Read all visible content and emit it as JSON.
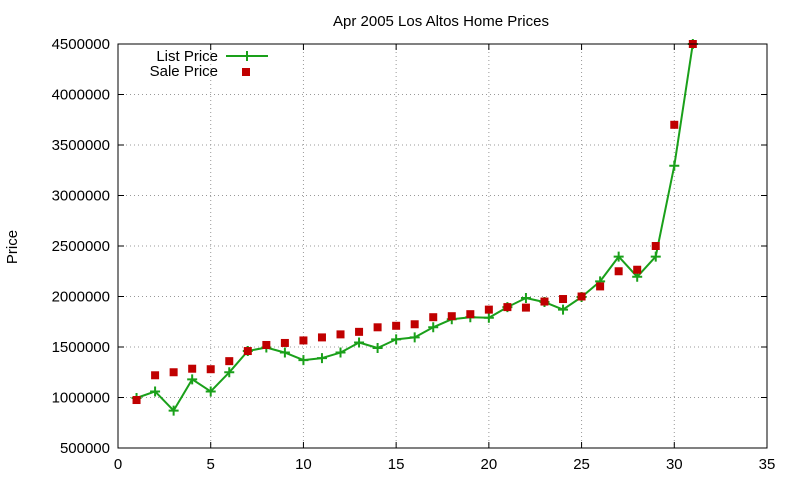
{
  "chart_data": {
    "type": "line",
    "title": "Apr 2005 Los Altos Home Prices",
    "xlabel": "",
    "ylabel": "Price",
    "xlim": [
      0,
      35
    ],
    "ylim": [
      500000,
      4500000
    ],
    "x_ticks": [
      0,
      5,
      10,
      15,
      20,
      25,
      30,
      35
    ],
    "y_ticks": [
      500000,
      1000000,
      1500000,
      2000000,
      2500000,
      3000000,
      3500000,
      4000000,
      4500000
    ],
    "grid": true,
    "legend_position": "top-left",
    "series": [
      {
        "name": "List Price",
        "style": "line-with-plus-markers",
        "color": "#1aa01a",
        "x": [
          1,
          2,
          3,
          4,
          5,
          6,
          7,
          8,
          9,
          10,
          11,
          12,
          13,
          14,
          15,
          16,
          17,
          18,
          19,
          20,
          21,
          22,
          23,
          24,
          25,
          26,
          27,
          28,
          29,
          30,
          31
        ],
        "values": [
          995000,
          1060000,
          870000,
          1180000,
          1060000,
          1250000,
          1460000,
          1495000,
          1445000,
          1370000,
          1390000,
          1445000,
          1545000,
          1490000,
          1575000,
          1595000,
          1695000,
          1775000,
          1795000,
          1790000,
          1895000,
          1985000,
          1945000,
          1870000,
          1995000,
          2150000,
          2395000,
          2195000,
          2395000,
          3295000,
          4500000
        ]
      },
      {
        "name": "Sale Price",
        "style": "square-markers",
        "color": "#c00000",
        "x": [
          1,
          2,
          3,
          4,
          5,
          6,
          7,
          8,
          9,
          10,
          11,
          12,
          13,
          14,
          15,
          16,
          17,
          18,
          19,
          20,
          21,
          22,
          23,
          24,
          25,
          26,
          27,
          28,
          29,
          30,
          31
        ],
        "values": [
          975000,
          1220000,
          1250000,
          1285000,
          1280000,
          1360000,
          1460000,
          1520000,
          1540000,
          1565000,
          1595000,
          1625000,
          1650000,
          1695000,
          1710000,
          1725000,
          1795000,
          1805000,
          1825000,
          1870000,
          1895000,
          1890000,
          1950000,
          1975000,
          2000000,
          2100000,
          2250000,
          2265000,
          2500000,
          3700000,
          4500000
        ]
      }
    ]
  }
}
